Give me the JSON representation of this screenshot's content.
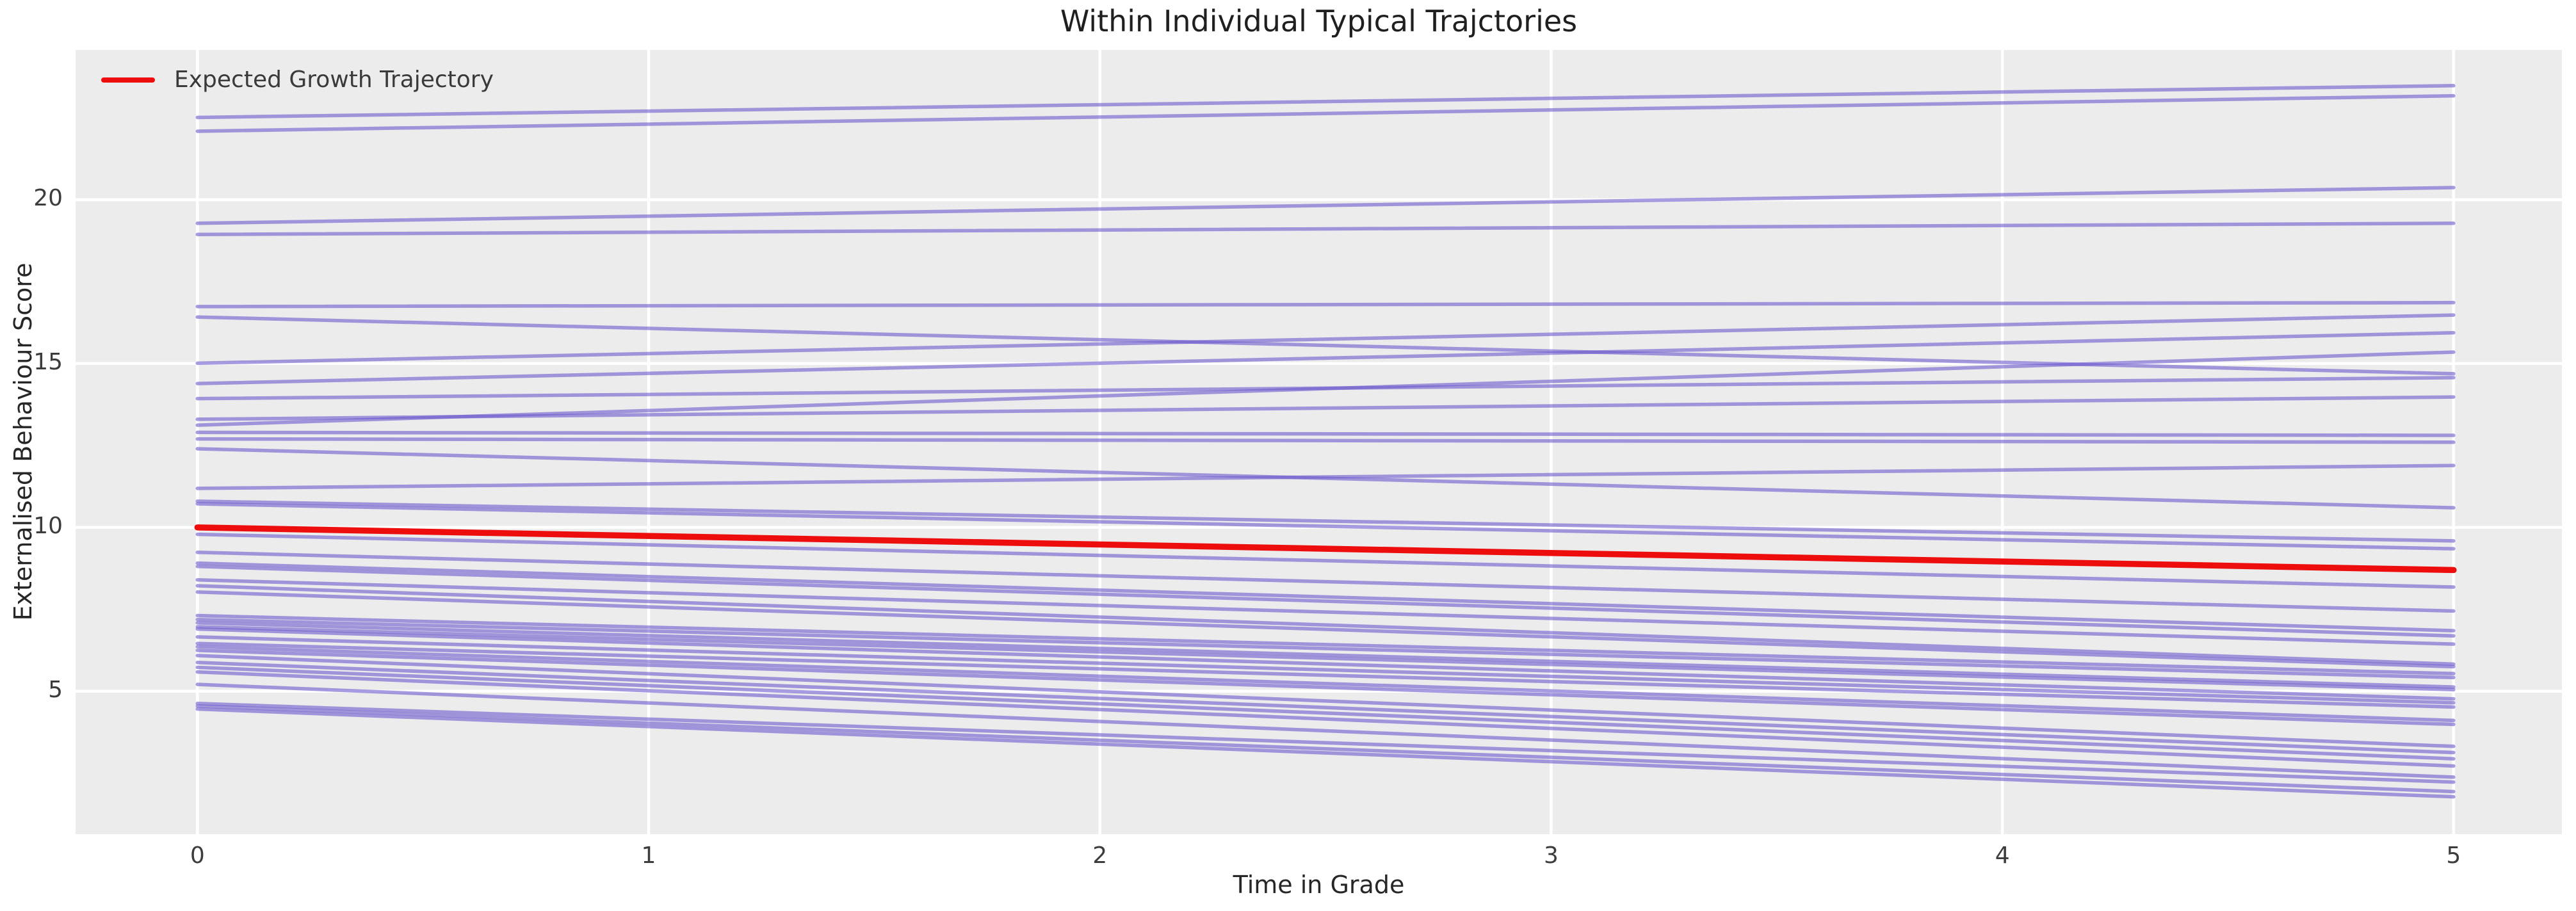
{
  "chart_data": {
    "type": "line",
    "title": "Within Individual Typical Trajctories",
    "xlabel": "Time in Grade",
    "ylabel": "Externalised Behaviour Score",
    "xlim": [
      -0.27,
      5.24
    ],
    "ylim": [
      0.64,
      24.57
    ],
    "grid": true,
    "xticks": [
      {
        "v": 0,
        "label": "0"
      },
      {
        "v": 1,
        "label": "1"
      },
      {
        "v": 2,
        "label": "2"
      },
      {
        "v": 3,
        "label": "3"
      },
      {
        "v": 4,
        "label": "4"
      },
      {
        "v": 5,
        "label": "5"
      }
    ],
    "yticks": [
      {
        "v": 5,
        "label": "5"
      },
      {
        "v": 10,
        "label": "10"
      },
      {
        "v": 15,
        "label": "15"
      },
      {
        "v": 20,
        "label": "20"
      }
    ],
    "legend": {
      "position": "upper left",
      "entries": [
        {
          "label": "Expected Growth Trajectory",
          "color": "#ee0d0d"
        }
      ]
    },
    "colors": {
      "figure_bg": "#ffffff",
      "axes_bg": "#edecec",
      "grid": "#ffffff",
      "trajectory": "rgba(106,90,205,0.6)",
      "expected": "#ee0d0d",
      "text": "#262626"
    },
    "expected_trajectory": {
      "x": [
        0,
        5
      ],
      "y": [
        10.0,
        8.7
      ]
    },
    "trajectory_x": [
      0,
      5
    ],
    "trajectories": [
      [
        22.51,
        23.48
      ],
      [
        22.09,
        23.17
      ],
      [
        19.28,
        20.37
      ],
      [
        18.94,
        19.28
      ],
      [
        16.74,
        16.86
      ],
      [
        16.42,
        14.69
      ],
      [
        15.01,
        16.48
      ],
      [
        14.39,
        15.94
      ],
      [
        13.93,
        14.57
      ],
      [
        13.3,
        13.98
      ],
      [
        13.12,
        15.35
      ],
      [
        12.9,
        12.81
      ],
      [
        12.7,
        12.6
      ],
      [
        12.4,
        10.6
      ],
      [
        11.19,
        11.89
      ],
      [
        10.8,
        9.59
      ],
      [
        10.72,
        9.35
      ],
      [
        9.79,
        8.18
      ],
      [
        9.24,
        7.45
      ],
      [
        8.91,
        6.85
      ],
      [
        8.81,
        6.69
      ],
      [
        8.4,
        6.44
      ],
      [
        8.22,
        5.83
      ],
      [
        8.03,
        5.75
      ],
      [
        7.31,
        5.54
      ],
      [
        7.19,
        5.42
      ],
      [
        7.09,
        5.13
      ],
      [
        6.97,
        5.05
      ],
      [
        6.9,
        4.77
      ],
      [
        6.66,
        4.65
      ],
      [
        6.46,
        4.52
      ],
      [
        6.36,
        4.11
      ],
      [
        6.25,
        3.99
      ],
      [
        6.09,
        3.32
      ],
      [
        5.88,
        3.13
      ],
      [
        5.73,
        2.94
      ],
      [
        5.59,
        2.72
      ],
      [
        5.21,
        2.38
      ],
      [
        4.63,
        2.23
      ],
      [
        4.55,
        1.94
      ],
      [
        4.46,
        1.78
      ]
    ]
  }
}
